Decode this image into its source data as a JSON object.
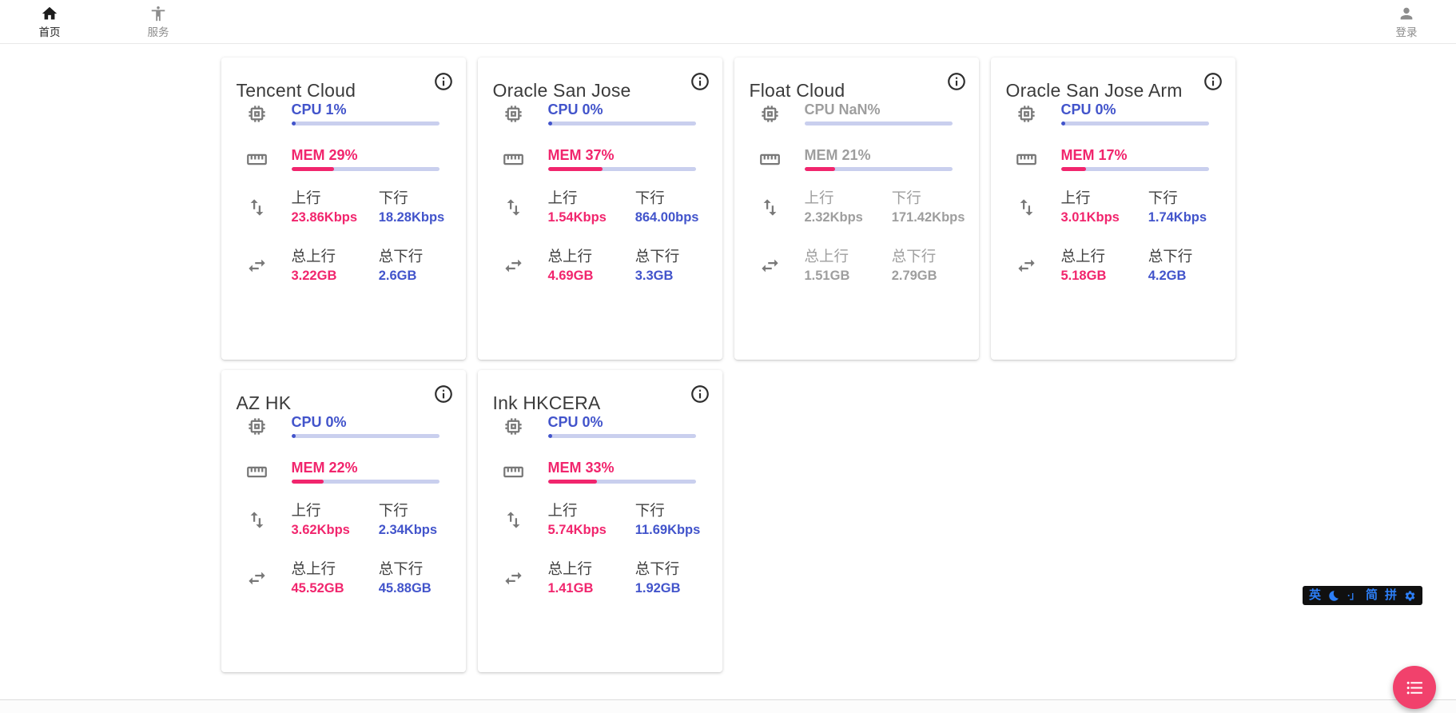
{
  "nav": {
    "home": {
      "label": "首页"
    },
    "service": {
      "label": "服务"
    },
    "login": {
      "label": "登录"
    }
  },
  "labels": {
    "upload": "上行",
    "download": "下行",
    "total_upload": "总上行",
    "total_download": "总下行"
  },
  "servers": [
    {
      "name": "Tencent Cloud",
      "online": true,
      "cpu_text": "CPU 1%",
      "cpu_percent": 1,
      "mem_text": "MEM 29%",
      "mem_percent": 29,
      "upload": "23.86Kbps",
      "download": "18.28Kbps",
      "total_upload": "3.22GB",
      "total_download": "2.6GB"
    },
    {
      "name": "Oracle San Jose",
      "online": true,
      "cpu_text": "CPU 0%",
      "cpu_percent": 0,
      "mem_text": "MEM 37%",
      "mem_percent": 37,
      "upload": "1.54Kbps",
      "download": "864.00bps",
      "total_upload": "4.69GB",
      "total_download": "3.3GB"
    },
    {
      "name": "Float Cloud",
      "online": false,
      "cpu_text": "CPU NaN%",
      "cpu_percent": null,
      "mem_text": "MEM 21%",
      "mem_percent": 21,
      "upload": "2.32Kbps",
      "download": "171.42Kbps",
      "total_upload": "1.51GB",
      "total_download": "2.79GB"
    },
    {
      "name": "Oracle San Jose Arm",
      "online": true,
      "cpu_text": "CPU 0%",
      "cpu_percent": 0,
      "mem_text": "MEM 17%",
      "mem_percent": 17,
      "upload": "3.01Kbps",
      "download": "1.74Kbps",
      "total_upload": "5.18GB",
      "total_download": "4.2GB"
    },
    {
      "name": "AZ HK",
      "online": true,
      "cpu_text": "CPU 0%",
      "cpu_percent": 0,
      "mem_text": "MEM 22%",
      "mem_percent": 22,
      "upload": "3.62Kbps",
      "download": "2.34Kbps",
      "total_upload": "45.52GB",
      "total_download": "45.88GB"
    },
    {
      "name": "Ink HKCERA",
      "online": true,
      "cpu_text": "CPU 0%",
      "cpu_percent": 0,
      "mem_text": "MEM 33%",
      "mem_percent": 33,
      "upload": "5.74Kbps",
      "download": "11.69Kbps",
      "total_upload": "1.41GB",
      "total_download": "1.92GB"
    }
  ],
  "ime": {
    "lang": "英",
    "punct": "·」",
    "simp": "简",
    "pinyin": "拼"
  },
  "colors": {
    "accent_blue": "#4254cb",
    "accent_pink": "#f1256d",
    "bar_track": "#c9cfee",
    "offline_gray": "#9e9e9e",
    "fab_pink": "#f1416c",
    "ime_blue": "#2d7ff7"
  }
}
